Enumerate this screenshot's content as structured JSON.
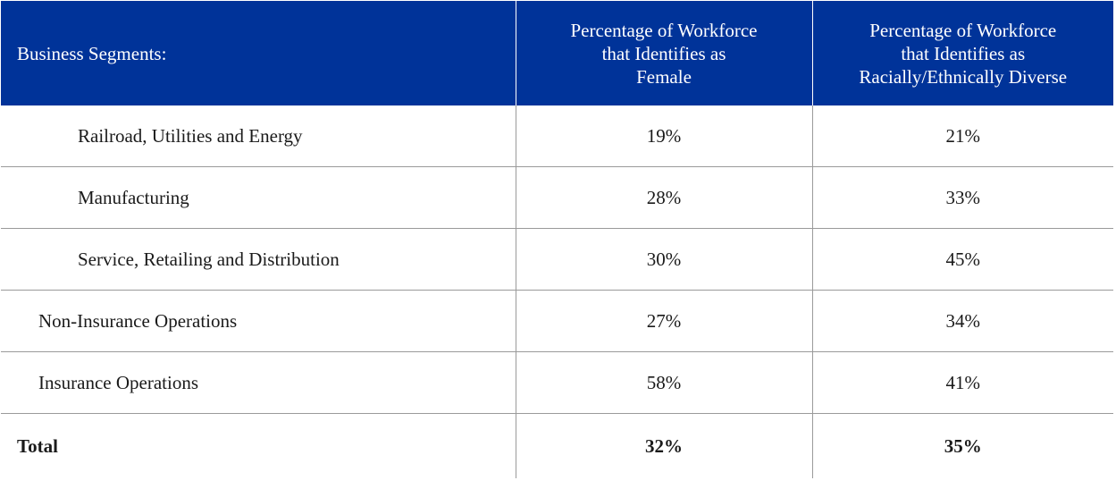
{
  "table": {
    "headers": {
      "segment": "Business Segments:",
      "female": "Percentage of Workforce\nthat Identifies as\nFemale",
      "diverse": "Percentage of Workforce\nthat Identifies as\nRacially/Ethnically Diverse"
    },
    "rows": [
      {
        "segment": "Railroad, Utilities and Energy",
        "female": "19%",
        "diverse": "21%"
      },
      {
        "segment": "Manufacturing",
        "female": "28%",
        "diverse": "33%"
      },
      {
        "segment": "Service, Retailing and Distribution",
        "female": "30%",
        "diverse": "45%"
      },
      {
        "segment": "Non-Insurance Operations",
        "female": "27%",
        "diverse": "34%"
      },
      {
        "segment": "Insurance Operations",
        "female": "58%",
        "diverse": "41%"
      },
      {
        "segment": "Total",
        "female": "32%",
        "diverse": "35%"
      }
    ]
  },
  "colors": {
    "header_bg": "#003399",
    "header_text": "#ffffff",
    "grid_line": "#9a9a9a"
  }
}
